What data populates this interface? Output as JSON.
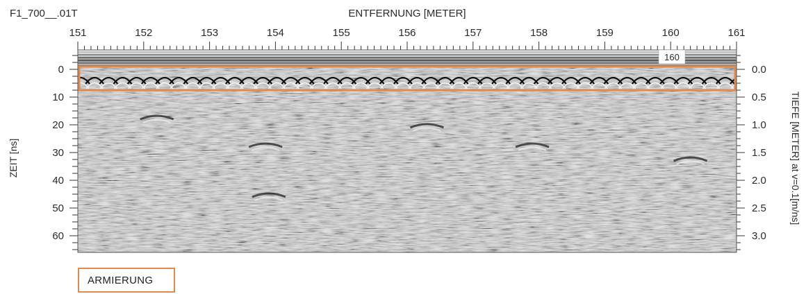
{
  "header": {
    "file_label": "F1_700__.01T"
  },
  "chart_data": {
    "type": "heatmap",
    "title": "",
    "xlabel": "ENTFERNUNG [METER]",
    "ylabel_left": "ZEIT [ns]",
    "ylabel_right": "TIEFE [METER] at v=0.1[m/ns]",
    "xlim": [
      151,
      161
    ],
    "x_ticks": [
      151,
      152,
      153,
      154,
      155,
      156,
      157,
      158,
      159,
      160,
      161
    ],
    "ylim_time": [
      -7,
      66
    ],
    "y_ticks_time": [
      0,
      10,
      20,
      30,
      40,
      50,
      60
    ],
    "y_ticks_depth": [
      "0.0",
      "0.5",
      "1.0",
      "1.5",
      "2.0",
      "2.5",
      "3.0"
    ],
    "marker_label": "160",
    "highlight_band": {
      "label": "ARMIERUNG",
      "time_range": [
        -1,
        7.5
      ],
      "color": "#e08a50"
    },
    "colormap": "grayscale",
    "hyperbola_apex_time": 3
  },
  "legend": {
    "label": "ARMIERUNG"
  }
}
